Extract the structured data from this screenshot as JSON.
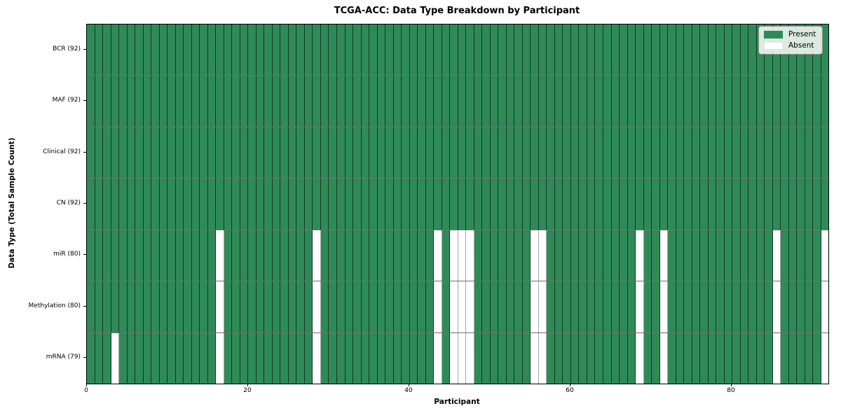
{
  "chart_data": {
    "type": "heatmap",
    "title": "TCGA-ACC: Data Type Breakdown by Participant",
    "xlabel": "Participant",
    "ylabel": "Data Type (Total Sample Count)",
    "n_participants": 92,
    "x_ticks": [
      0,
      20,
      40,
      60,
      80
    ],
    "legend_position": "upper right",
    "grid": "cell-borders",
    "colors": {
      "present": "#2e8b57",
      "absent": "#ffffff"
    },
    "legend": [
      {
        "label": "Present",
        "color": "#2e8b57"
      },
      {
        "label": "Absent",
        "color": "#ffffff"
      }
    ],
    "rows": [
      {
        "label": "BCR (92)",
        "data_type": "BCR",
        "present_count": 92,
        "absent_participants": []
      },
      {
        "label": "MAF (92)",
        "data_type": "MAF",
        "present_count": 92,
        "absent_participants": []
      },
      {
        "label": "Clinical (92)",
        "data_type": "Clinical",
        "present_count": 92,
        "absent_participants": []
      },
      {
        "label": "CN (92)",
        "data_type": "CN",
        "present_count": 92,
        "absent_participants": []
      },
      {
        "label": "miR (80)",
        "data_type": "miR",
        "present_count": 80,
        "absent_participants": [
          16,
          28,
          43,
          45,
          46,
          47,
          55,
          56,
          68,
          71,
          85,
          91
        ]
      },
      {
        "label": "Methylation (80)",
        "data_type": "Methylation",
        "present_count": 80,
        "absent_participants": [
          16,
          28,
          43,
          45,
          46,
          47,
          55,
          56,
          68,
          71,
          85,
          91
        ]
      },
      {
        "label": "mRNA (79)",
        "data_type": "mRNA",
        "present_count": 79,
        "absent_participants": [
          3,
          16,
          28,
          43,
          45,
          46,
          47,
          55,
          56,
          68,
          71,
          85,
          91
        ]
      }
    ]
  }
}
